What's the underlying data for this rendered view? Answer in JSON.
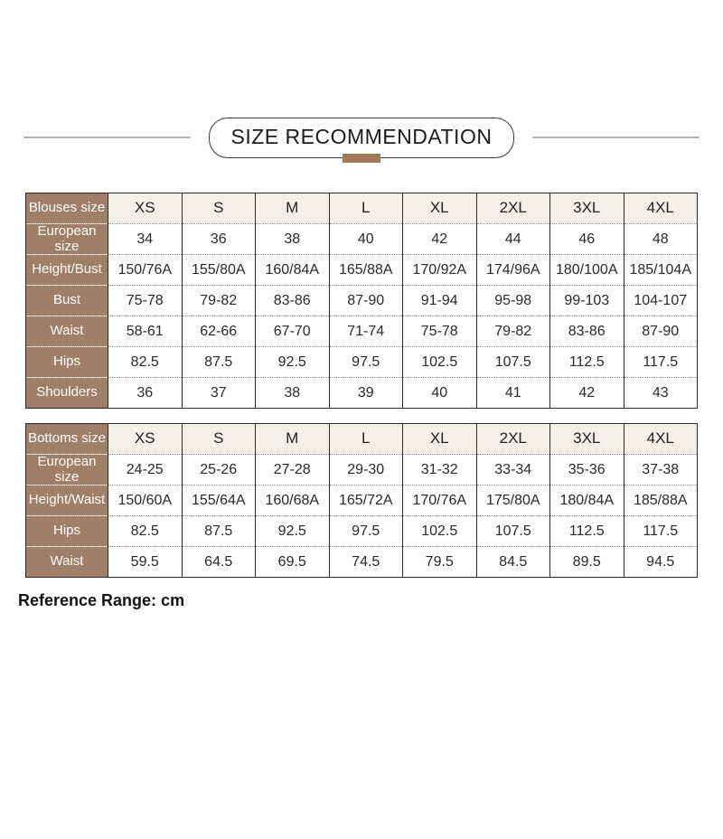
{
  "header": {
    "title": "SIZE RECOMMENDATION"
  },
  "footnote": "Reference Range: cm",
  "colors": {
    "label_brown": "#a07f66",
    "tab_brown": "#a1785a",
    "header_row_bg": "#f2f0e9",
    "grid_dark": "#2b2b2b",
    "grid_dotted": "#8f8f8f",
    "label_divider": "#cdbbab",
    "text_dark": "#222222",
    "line_gray": "#b0b0b0"
  },
  "chart_data": [
    {
      "type": "table",
      "header_label": "Blouses size",
      "columns": [
        "XS",
        "S",
        "M",
        "L",
        "XL",
        "2XL",
        "3XL",
        "4XL"
      ],
      "rows": [
        {
          "label": "European size",
          "values": [
            "34",
            "36",
            "38",
            "40",
            "42",
            "44",
            "46",
            "48"
          ]
        },
        {
          "label": "Height/Bust",
          "values": [
            "150/76A",
            "155/80A",
            "160/84A",
            "165/88A",
            "170/92A",
            "174/96A",
            "180/100A",
            "185/104A"
          ]
        },
        {
          "label": "Bust",
          "values": [
            "75-78",
            "79-82",
            "83-86",
            "87-90",
            "91-94",
            "95-98",
            "99-103",
            "104-107"
          ]
        },
        {
          "label": "Waist",
          "values": [
            "58-61",
            "62-66",
            "67-70",
            "71-74",
            "75-78",
            "79-82",
            "83-86",
            "87-90"
          ]
        },
        {
          "label": "Hips",
          "values": [
            "82.5",
            "87.5",
            "92.5",
            "97.5",
            "102.5",
            "107.5",
            "112.5",
            "117.5"
          ]
        },
        {
          "label": "Shoulders",
          "values": [
            "36",
            "37",
            "38",
            "39",
            "40",
            "41",
            "42",
            "43"
          ]
        }
      ]
    },
    {
      "type": "table",
      "header_label": "Bottoms size",
      "columns": [
        "XS",
        "S",
        "M",
        "L",
        "XL",
        "2XL",
        "3XL",
        "4XL"
      ],
      "rows": [
        {
          "label": "European size",
          "values": [
            "24-25",
            "25-26",
            "27-28",
            "29-30",
            "31-32",
            "33-34",
            "35-36",
            "37-38"
          ]
        },
        {
          "label": "Height/Waist",
          "values": [
            "150/60A",
            "155/64A",
            "160/68A",
            "165/72A",
            "170/76A",
            "175/80A",
            "180/84A",
            "185/88A"
          ]
        },
        {
          "label": "Hips",
          "values": [
            "82.5",
            "87.5",
            "92.5",
            "97.5",
            "102.5",
            "107.5",
            "112.5",
            "117.5"
          ]
        },
        {
          "label": "Waist",
          "values": [
            "59.5",
            "64.5",
            "69.5",
            "74.5",
            "79.5",
            "84.5",
            "89.5",
            "94.5"
          ]
        }
      ]
    }
  ]
}
